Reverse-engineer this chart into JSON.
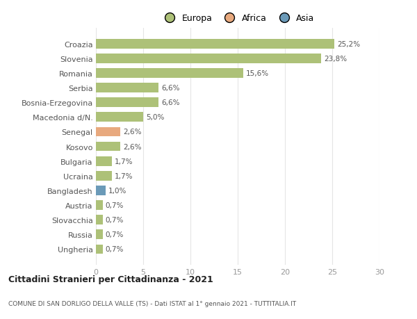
{
  "countries": [
    "Croazia",
    "Slovenia",
    "Romania",
    "Serbia",
    "Bosnia-Erzegovina",
    "Macedonia d/N.",
    "Senegal",
    "Kosovo",
    "Bulgaria",
    "Ucraina",
    "Bangladesh",
    "Austria",
    "Slovacchia",
    "Russia",
    "Ungheria"
  ],
  "values": [
    25.2,
    23.8,
    15.6,
    6.6,
    6.6,
    5.0,
    2.6,
    2.6,
    1.7,
    1.7,
    1.0,
    0.7,
    0.7,
    0.7,
    0.7
  ],
  "labels": [
    "25,2%",
    "23,8%",
    "15,6%",
    "6,6%",
    "6,6%",
    "5,0%",
    "2,6%",
    "2,6%",
    "1,7%",
    "1,7%",
    "1,0%",
    "0,7%",
    "0,7%",
    "0,7%",
    "0,7%"
  ],
  "continents": [
    "Europa",
    "Europa",
    "Europa",
    "Europa",
    "Europa",
    "Europa",
    "Africa",
    "Europa",
    "Europa",
    "Europa",
    "Asia",
    "Europa",
    "Europa",
    "Europa",
    "Europa"
  ],
  "colors": {
    "Europa": "#adc178",
    "Africa": "#e8a97e",
    "Asia": "#6b9ab8"
  },
  "legend_order": [
    "Europa",
    "Africa",
    "Asia"
  ],
  "legend_colors": {
    "Europa": "#adc178",
    "Africa": "#e8a97e",
    "Asia": "#6b9ab8"
  },
  "xlim": [
    0,
    30
  ],
  "xticks": [
    0,
    5,
    10,
    15,
    20,
    25,
    30
  ],
  "title1": "Cittadini Stranieri per Cittadinanza - 2021",
  "title2": "COMUNE DI SAN DORLIGO DELLA VALLE (TS) - Dati ISTAT al 1° gennaio 2021 - TUTTITALIA.IT",
  "background_color": "#ffffff",
  "grid_color": "#e5e5e5",
  "bar_height": 0.65
}
